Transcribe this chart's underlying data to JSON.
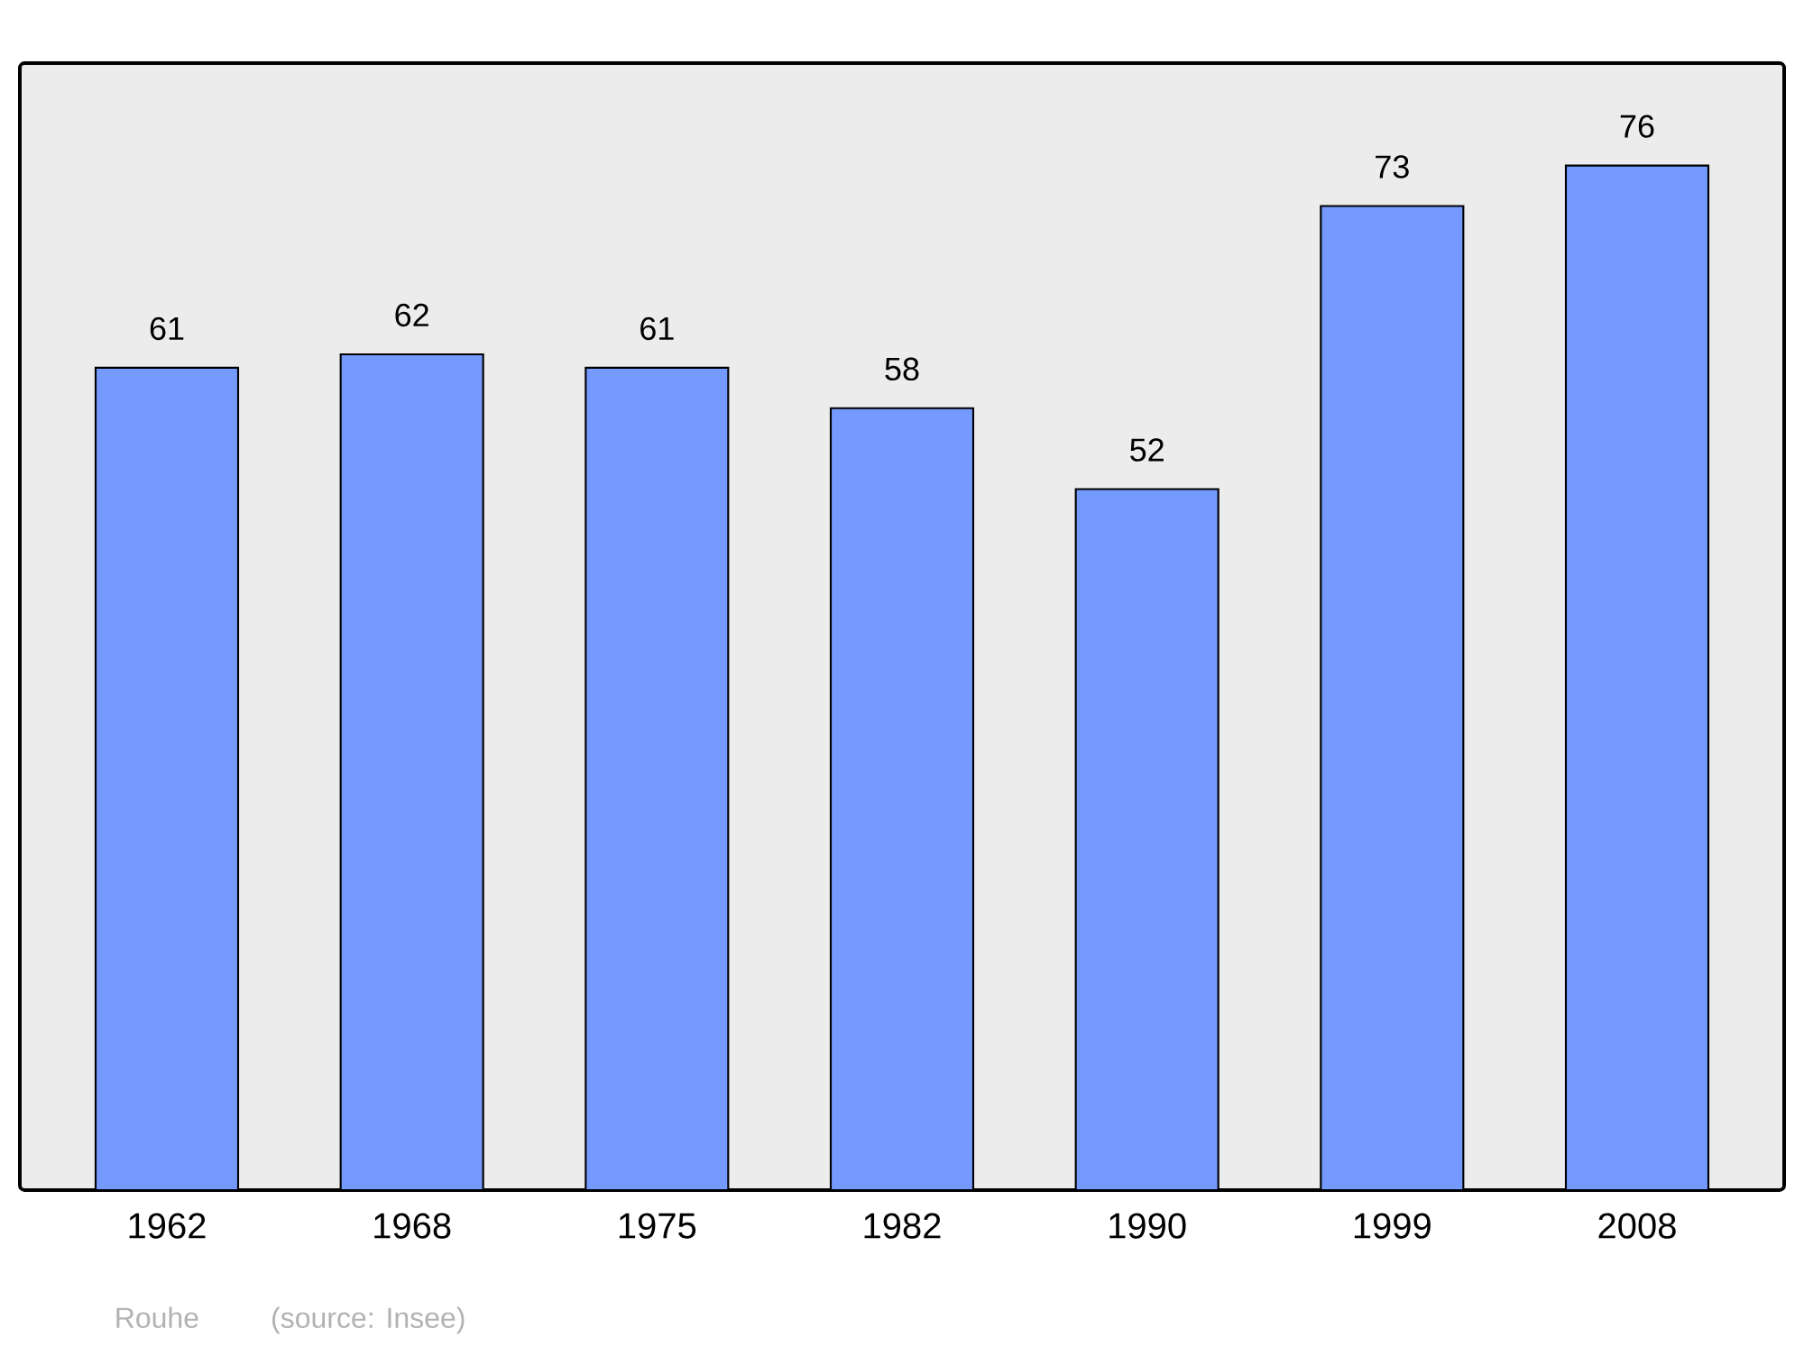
{
  "chart_data": {
    "type": "bar",
    "categories": [
      "1962",
      "1968",
      "1975",
      "1982",
      "1990",
      "1999",
      "2008"
    ],
    "values": [
      61,
      62,
      61,
      58,
      52,
      73,
      76
    ],
    "color": "#7499ff",
    "data_labels": true,
    "annotations": [
      "Rouhe",
      "(source: Insee)"
    ]
  }
}
